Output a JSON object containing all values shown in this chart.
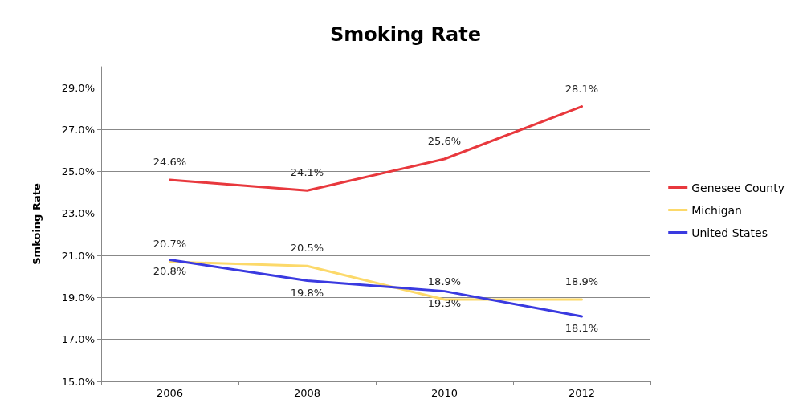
{
  "chart_data": {
    "type": "line",
    "title": "Smoking Rate",
    "ylabel": "Smkoing Rate",
    "categories": [
      "2006",
      "2008",
      "2010",
      "2012"
    ],
    "series": [
      {
        "name": "Genesee County",
        "color": "#e8383d",
        "values": [
          24.6,
          24.1,
          25.6,
          28.1
        ],
        "value_labels": [
          "24.6%",
          "24.1%",
          "25.6%",
          "28.1%"
        ]
      },
      {
        "name": "Michigan",
        "color": "#fcd96a",
        "values": [
          20.7,
          20.5,
          18.9,
          18.9
        ],
        "value_labels": [
          "20.7%",
          "20.5%",
          "18.9%",
          "18.9%"
        ]
      },
      {
        "name": "United States",
        "color": "#3a3ae0",
        "values": [
          20.8,
          19.8,
          19.3,
          18.1
        ],
        "value_labels": [
          "20.8%",
          "19.8%",
          "19.3%",
          "18.1%"
        ]
      }
    ],
    "ylim": [
      15,
      30
    ],
    "yticks": [
      {
        "value": 15,
        "label": "15.0%"
      },
      {
        "value": 17,
        "label": "17.0%"
      },
      {
        "value": 19,
        "label": "19.0%"
      },
      {
        "value": 21,
        "label": "21.0%"
      },
      {
        "value": 23,
        "label": "23.0%"
      },
      {
        "value": 25,
        "label": "25.0%"
      },
      {
        "value": 27,
        "label": "27.0%"
      },
      {
        "value": 29,
        "label": "29.0%"
      }
    ],
    "grid": "y",
    "legend": "right",
    "marker": "none",
    "line_style": "solid"
  }
}
